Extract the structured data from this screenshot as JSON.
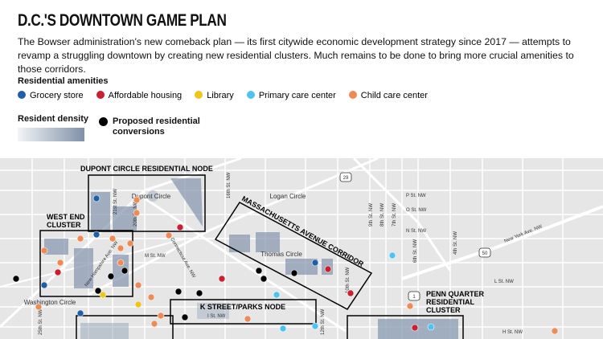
{
  "header": {
    "title": "D.C.'S DOWNTOWN GAME PLAN",
    "description": "The Bowser administration's new comeback plan — its first citywide economic development strategy since 2017 — attempts to revamp a struggling downtown by creating new residential clusters. Much remains to be done to bring more crucial amenities to those corridors."
  },
  "legend": {
    "title": "Residential amenities",
    "items": [
      {
        "label": "Grocery store",
        "color": "#1f5fa8"
      },
      {
        "label": "Affordable housing",
        "color": "#c8202f"
      },
      {
        "label": "Library",
        "color": "#f0c419"
      },
      {
        "label": "Primary care center",
        "color": "#4fc3f0"
      },
      {
        "label": "Child care center",
        "color": "#ef8a55"
      }
    ],
    "density_label": "Resident density",
    "proposed": {
      "lines": [
        "Proposed residential",
        "conversions"
      ],
      "color": "#000000"
    }
  },
  "map": {
    "nodes": [
      {
        "lines": [
          "DUPONT CIRCLE RESIDENTIAL NODE"
        ]
      },
      {
        "lines": [
          "WEST END",
          "CLUSTER"
        ]
      },
      {
        "lines": [
          "MASSACHUSETTS AVENUE CORRIDOR"
        ]
      },
      {
        "lines": [
          "K STREET/PARKS NODE"
        ]
      },
      {
        "lines": [
          "PENN QUARTER",
          "RESIDENTIAL",
          "CLUSTER"
        ]
      }
    ],
    "places": [
      "Dupont Circle",
      "Logan Circle",
      "Thomas Circle",
      "Washington Circle"
    ],
    "streets": [
      "21st St. NW",
      "20th St. NW",
      "16th St. NW",
      "New Hampshire Ave. NW",
      "Connecticut Ave. NW",
      "M St. NW",
      "L St. NW",
      "I St. NW",
      "10th St. NW",
      "9th St. NW",
      "8th St. NW",
      "7th St. NW",
      "6th St. NW",
      "4th St. NW",
      "P St. NW",
      "O St. NW",
      "N St. NW",
      "New York Ave. NW",
      "H St. NW",
      "12th St. NW",
      "25th St. NW"
    ],
    "shields": [
      "29",
      "50",
      "1"
    ]
  }
}
